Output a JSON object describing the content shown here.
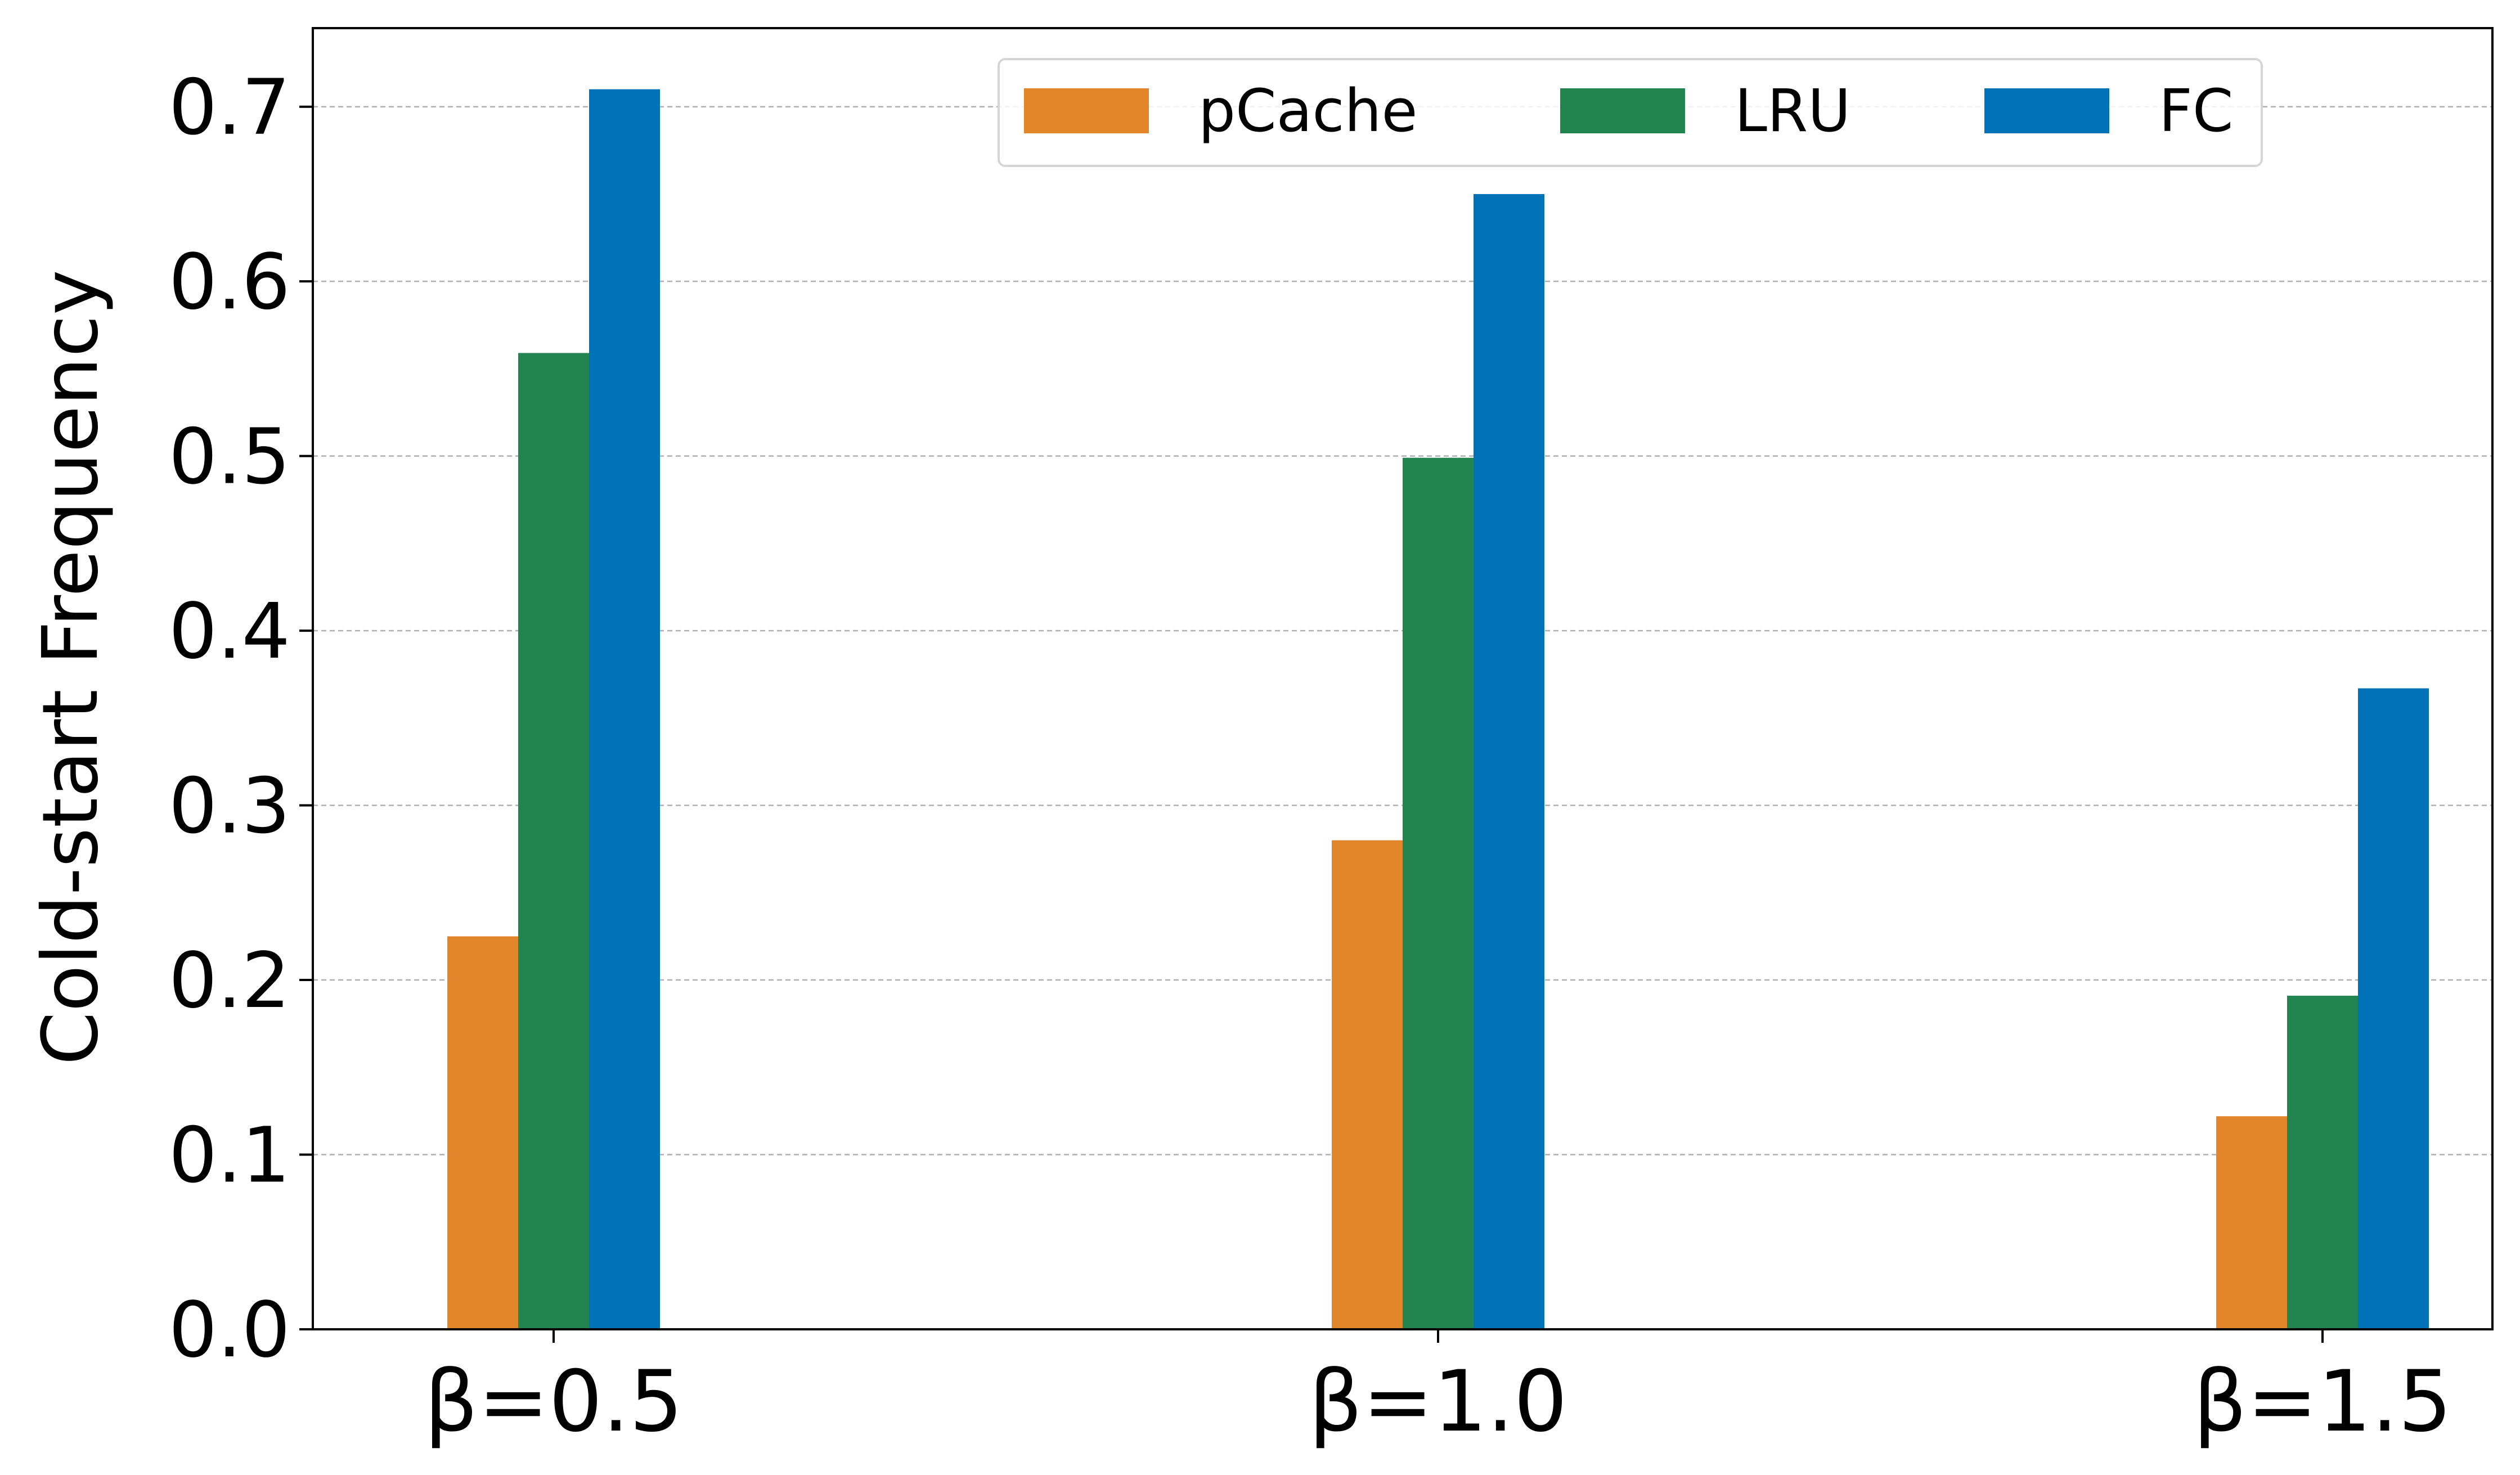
{
  "chart_data": {
    "type": "bar",
    "title": "",
    "xlabel": "",
    "ylabel": "Cold-start Frequency",
    "categories": [
      "β=0.5",
      "β=1.0",
      "β=1.5"
    ],
    "series": [
      {
        "name": "pCache",
        "color": "#E1862A",
        "values": [
          0.225,
          0.28,
          0.122
        ]
      },
      {
        "name": "LRU",
        "color": "#228550",
        "values": [
          0.559,
          0.499,
          0.191
        ]
      },
      {
        "name": "FC",
        "color": "#0072B8",
        "values": [
          0.71,
          0.65,
          0.367
        ]
      }
    ],
    "ylim": [
      0,
      0.745
    ],
    "yticks": [
      "0.0",
      "0.1",
      "0.2",
      "0.3",
      "0.4",
      "0.5",
      "0.6",
      "0.7"
    ],
    "grid": "horizontal-dashed",
    "legend_position": "top-center"
  }
}
